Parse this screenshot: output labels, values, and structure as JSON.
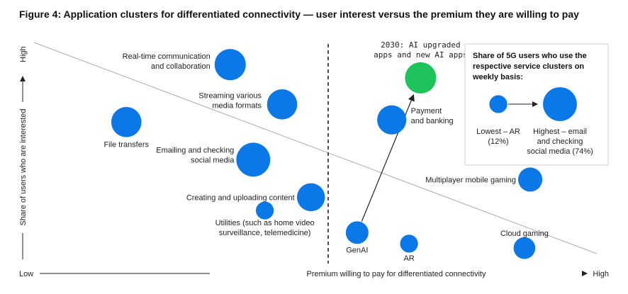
{
  "figure_title": "Figure 4: Application clusters for differentiated connectivity — user interest versus the premium they are willing to pay",
  "colors": {
    "bubble": "#0a78e6",
    "highlight": "#1ec25a",
    "line": "#444444",
    "box_border": "#cfcfcf"
  },
  "chart_data": {
    "type": "scatter",
    "title": "Application clusters for differentiated connectivity — user interest versus the premium they are willing to pay",
    "xlabel": "Premium willing to pay for differentiated connectivity",
    "ylabel": "Share of users who are interested",
    "x_low": "Low",
    "x_high": "High",
    "y_high": "High",
    "xlim": [
      0,
      100
    ],
    "ylim": [
      0,
      100
    ],
    "size_unit": "% of 5G users using weekly (approx.)",
    "points": [
      {
        "lines": [
          "Real-time communication",
          "and collaboration"
        ],
        "x": 34,
        "y": 90,
        "size": 60,
        "color": "blue"
      },
      {
        "lines": [
          "Streaming various",
          "media formats"
        ],
        "x": 43,
        "y": 72,
        "size": 55,
        "color": "blue"
      },
      {
        "lines": [
          "File transfers"
        ],
        "x": 16,
        "y": 64,
        "size": 55,
        "color": "blue"
      },
      {
        "lines": [
          "Emailing and checking",
          "social media"
        ],
        "x": 38,
        "y": 47,
        "size": 74,
        "color": "blue"
      },
      {
        "lines": [
          "Creating and uploading content"
        ],
        "x": 48,
        "y": 30,
        "size": 45,
        "color": "blue"
      },
      {
        "lines": [
          "Utilities (such as home video",
          "surveillance, telemedicine)"
        ],
        "x": 40,
        "y": 24,
        "size": 12,
        "color": "blue"
      },
      {
        "lines": [
          "Payment",
          "and banking"
        ],
        "x": 62,
        "y": 65,
        "size": 50,
        "color": "blue"
      },
      {
        "lines": [
          "GenAI"
        ],
        "x": 56,
        "y": 14,
        "size": 25,
        "color": "blue"
      },
      {
        "lines": [
          "AR"
        ],
        "x": 65,
        "y": 9,
        "size": 12,
        "color": "blue"
      },
      {
        "lines": [
          "Multiplayer mobile gaming"
        ],
        "x": 86,
        "y": 38,
        "size": 30,
        "color": "blue"
      },
      {
        "lines": [
          "Cloud gaming"
        ],
        "x": 85,
        "y": 7,
        "size": 22,
        "color": "blue"
      },
      {
        "lines": [
          "2030: AI upgraded",
          "apps and new AI apps"
        ],
        "x": 67,
        "y": 84,
        "size": 60,
        "color": "green"
      }
    ],
    "arrow": {
      "from": "GenAI",
      "to": "2030: AI upgraded apps and new AI apps"
    }
  },
  "legend": {
    "title_lines": [
      "Share of 5G users who use the",
      "respective service clusters on",
      "weekly basis:"
    ],
    "lowest_lines": [
      "Lowest – AR",
      "(12%)"
    ],
    "highest_lines": [
      "Highest – email",
      "and checking",
      "social media (74%)"
    ],
    "lowest_value": 12,
    "highest_value": 74
  }
}
